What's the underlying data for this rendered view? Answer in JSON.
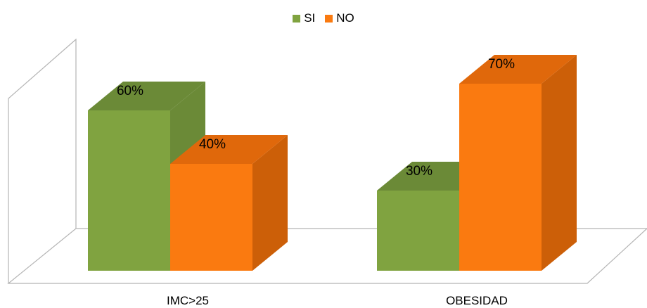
{
  "chart_data": {
    "type": "bar",
    "categories": [
      "IMC>25",
      "OBESIDAD"
    ],
    "series": [
      {
        "name": "SI",
        "values": [
          60,
          30
        ],
        "labels": [
          "60%",
          "30%"
        ]
      },
      {
        "name": "NO",
        "values": [
          40,
          70
        ],
        "labels": [
          "40%",
          "70%"
        ]
      }
    ],
    "ylim": [
      0,
      100
    ],
    "grid": false,
    "legend_position": "top-center",
    "title": "",
    "xlabel": "",
    "ylabel": ""
  },
  "colors": {
    "SI": {
      "front": "#80a340",
      "top": "#6b8a37",
      "side": "#6b8a37"
    },
    "NO": {
      "front": "#fa7a10",
      "top": "#e0680b",
      "side": "#cc5f08"
    },
    "wall": "#b5b5b5"
  }
}
